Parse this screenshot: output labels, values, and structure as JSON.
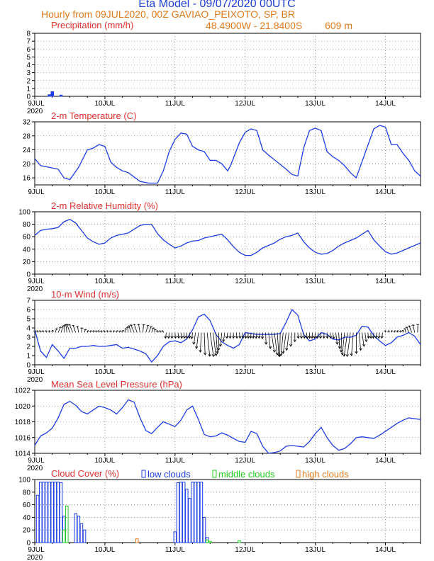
{
  "header": {
    "title": "Eta Model  -  09/07/2020 00UTC",
    "subtitle": "Hourly from 09JUL2020, 00Z   GAVIAO_PEIXOTO, SP, BR",
    "location": "48.4900W  -  21.8400S",
    "elevation": "609   m"
  },
  "colors": {
    "title": "#1c3cd8",
    "header": "#e07a1c",
    "panel_title": "#e03030",
    "line": "#1e3ce6",
    "low": "#1e3ce6",
    "middle": "#22cc22",
    "high": "#e07a1c"
  },
  "x_axis": {
    "day_labels": [
      "9JUL",
      "10JUL",
      "11JUL",
      "12JUL",
      "13JUL",
      "14JUL"
    ],
    "year_label": "2020",
    "range_hours": [
      0,
      132
    ]
  },
  "chart_data": [
    {
      "type": "bar",
      "title": "Precipitation  (mm/h)",
      "ylim": [
        0,
        8
      ],
      "yticks": [
        0,
        1,
        2,
        3,
        4,
        5,
        6,
        7,
        8
      ],
      "series": [
        {
          "name": "precipitation",
          "color": "#1e3ce6",
          "x": [
            5,
            6,
            9
          ],
          "values": [
            0.2,
            0.6,
            0.15
          ]
        }
      ]
    },
    {
      "type": "line",
      "title": "2-m Temperature  (C)",
      "ylim": [
        14,
        32
      ],
      "yticks": [
        16,
        20,
        24,
        28,
        32
      ],
      "series": [
        {
          "name": "temperature",
          "x": [
            0,
            2,
            5,
            8,
            10,
            12,
            15,
            18,
            20,
            22,
            24,
            26,
            28,
            30,
            32,
            36,
            39,
            42,
            44,
            46,
            48,
            50,
            52,
            54,
            56,
            58,
            60,
            62,
            64,
            66,
            67,
            70,
            72,
            74,
            76,
            78,
            80,
            83,
            86,
            88,
            90,
            92,
            94,
            96,
            98,
            100,
            102,
            104,
            106,
            108,
            110,
            113,
            116,
            118,
            120,
            122,
            124,
            126,
            128,
            130,
            132
          ],
          "values": [
            21.5,
            19.5,
            19,
            18.5,
            16,
            15.5,
            19,
            24,
            24.5,
            25.5,
            25,
            20.5,
            19,
            18,
            17.5,
            15,
            14.5,
            14.5,
            18,
            23.5,
            27,
            28.8,
            28.5,
            25,
            24,
            23.5,
            21,
            21,
            20,
            18,
            19.5,
            26,
            29,
            30,
            29.5,
            24,
            22.5,
            20.5,
            18.5,
            17,
            16.5,
            24.5,
            29.5,
            30.2,
            29.5,
            23.5,
            22,
            21,
            19.5,
            17.5,
            16,
            23,
            30,
            31,
            30.5,
            25.5,
            25.5,
            23,
            21,
            18,
            16.5
          ]
        }
      ]
    },
    {
      "type": "line",
      "title": "2-m Relative Humidity  (%)",
      "ylim": [
        0,
        100
      ],
      "yticks": [
        0,
        20,
        40,
        60,
        80,
        100
      ],
      "series": [
        {
          "name": "humidity",
          "x": [
            0,
            2,
            4,
            6,
            8,
            10,
            12,
            14,
            16,
            18,
            20,
            22,
            24,
            26,
            28,
            30,
            32,
            34,
            36,
            38,
            40,
            42,
            44,
            46,
            48,
            50,
            52,
            54,
            56,
            58,
            60,
            62,
            64,
            66,
            68,
            70,
            72,
            74,
            76,
            78,
            80,
            82,
            84,
            86,
            88,
            90,
            92,
            94,
            96,
            98,
            100,
            102,
            104,
            106,
            108,
            110,
            112,
            114,
            116,
            118,
            120,
            122,
            124,
            126,
            128,
            130,
            132
          ],
          "values": [
            62,
            70,
            72,
            73,
            75,
            84,
            88,
            82,
            70,
            58,
            52,
            48,
            50,
            58,
            62,
            64,
            66,
            72,
            78,
            80,
            80,
            65,
            55,
            48,
            42,
            45,
            50,
            53,
            54,
            58,
            60,
            62,
            64,
            55,
            44,
            35,
            30,
            30,
            35,
            42,
            46,
            50,
            56,
            60,
            62,
            66,
            52,
            42,
            35,
            32,
            33,
            38,
            45,
            50,
            54,
            58,
            64,
            70,
            55,
            45,
            36,
            32,
            34,
            38,
            42,
            46,
            50
          ]
        }
      ]
    },
    {
      "type": "line",
      "title": "10-m Wind  (m/s)",
      "ylim": [
        0,
        7
      ],
      "yticks": [
        0,
        1,
        2,
        3,
        4,
        5,
        6,
        7
      ],
      "series": [
        {
          "name": "wind_speed",
          "x": [
            0,
            2,
            4,
            6,
            8,
            10,
            12,
            14,
            16,
            18,
            20,
            22,
            24,
            26,
            28,
            30,
            32,
            34,
            36,
            38,
            40,
            42,
            44,
            46,
            48,
            50,
            52,
            54,
            56,
            58,
            60,
            62,
            64,
            66,
            68,
            70,
            72,
            74,
            76,
            78,
            80,
            82,
            84,
            86,
            88,
            90,
            92,
            94,
            96,
            98,
            100,
            102,
            104,
            106,
            108,
            110,
            112,
            114,
            116,
            118,
            120,
            122,
            124,
            126,
            128,
            130,
            132
          ],
          "values": [
            3.8,
            1.5,
            0.8,
            2.2,
            1.5,
            0.7,
            1.8,
            1.8,
            2,
            2,
            2.1,
            2,
            2,
            2.1,
            2.2,
            1.8,
            1.9,
            1.7,
            1.5,
            1.2,
            0.3,
            1,
            2,
            2.5,
            2.6,
            2.4,
            2.8,
            3.8,
            5.2,
            5.5,
            4.8,
            3.3,
            2.5,
            2.1,
            1.8,
            2.2,
            3.5,
            3.4,
            3.3,
            3.3,
            3.3,
            3.3,
            3.4,
            4.6,
            6,
            5.4,
            3.3,
            2.6,
            2.8,
            3.5,
            3.3,
            2.8,
            2.7,
            3,
            3,
            3.2,
            4.2,
            4.1,
            3.2,
            2.6,
            2.1,
            2.4,
            3,
            3.2,
            3.5,
            3.1,
            2.2
          ]
        }
      ]
    },
    {
      "type": "line",
      "title": "Mean Sea Level Pressure  (hPa)",
      "ylim": [
        1014,
        1022
      ],
      "yticks": [
        1014,
        1016,
        1018,
        1020,
        1022
      ],
      "series": [
        {
          "name": "mslp",
          "x": [
            0,
            2,
            4,
            6,
            8,
            10,
            12,
            14,
            16,
            18,
            20,
            22,
            24,
            26,
            28,
            30,
            32,
            34,
            36,
            38,
            40,
            42,
            44,
            46,
            48,
            50,
            52,
            54,
            56,
            58,
            60,
            62,
            64,
            66,
            68,
            70,
            72,
            74,
            76,
            78,
            80,
            82,
            84,
            86,
            88,
            90,
            92,
            94,
            96,
            98,
            100,
            102,
            104,
            106,
            108,
            110,
            112,
            114,
            116,
            118,
            120,
            122,
            124,
            126,
            128,
            130,
            132
          ],
          "values": [
            1015,
            1016.2,
            1016.6,
            1017.2,
            1018.5,
            1020.2,
            1020.6,
            1020.1,
            1019.3,
            1019.0,
            1019.5,
            1020.0,
            1019.8,
            1019.5,
            1019.0,
            1019.8,
            1020.8,
            1020.5,
            1018.5,
            1016.9,
            1016.5,
            1017.3,
            1018.0,
            1017.7,
            1017.4,
            1018.2,
            1019.5,
            1020.0,
            1018.3,
            1016.4,
            1016.1,
            1016.2,
            1016.6,
            1016.3,
            1015.9,
            1015.5,
            1015.4,
            1016.8,
            1016.5,
            1014.9,
            1014.0,
            1014.1,
            1014.3,
            1014.9,
            1015.0,
            1014.9,
            1014.8,
            1015.5,
            1016.5,
            1017.3,
            1016.0,
            1015.0,
            1014.4,
            1014.6,
            1015.2,
            1016.0,
            1016.1,
            1016.0,
            1015.9,
            1016.3,
            1016.8,
            1017.3,
            1017.8,
            1018.2,
            1018.5,
            1018.4,
            1018.3
          ]
        }
      ]
    },
    {
      "type": "bar",
      "title": "Cloud Cover  (%)",
      "ylim": [
        0,
        100
      ],
      "yticks": [
        0,
        20,
        40,
        60,
        80,
        100
      ],
      "legend": [
        "low clouds",
        "middle clouds",
        "high clouds"
      ],
      "series": [
        {
          "name": "low clouds",
          "color": "#1e3ce6",
          "x": [
            1,
            2,
            3,
            4,
            5,
            6,
            7,
            8,
            9,
            10,
            14,
            15,
            16,
            17,
            48,
            49,
            50,
            51,
            52,
            53,
            54,
            55,
            56,
            57,
            58,
            59
          ],
          "values": [
            75,
            96,
            96,
            96,
            96,
            96,
            96,
            96,
            95,
            42,
            46,
            42,
            30,
            20,
            17,
            95,
            96,
            96,
            85,
            70,
            96,
            96,
            96,
            96,
            40,
            8
          ]
        },
        {
          "name": "middle clouds",
          "color": "#22cc22",
          "x": [
            10,
            11,
            59,
            60,
            70
          ],
          "values": [
            20,
            58,
            4,
            2,
            3
          ]
        },
        {
          "name": "high clouds",
          "color": "#e07a1c",
          "x": [
            35
          ],
          "values": [
            6
          ]
        }
      ]
    }
  ]
}
